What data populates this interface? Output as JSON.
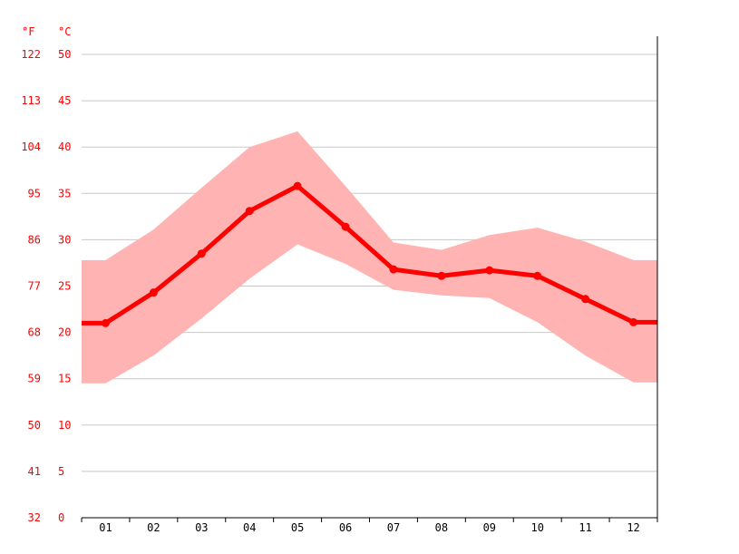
{
  "chart_data": {
    "type": "line",
    "units": {
      "fahrenheit": "°F",
      "celsius": "°C"
    },
    "categories": [
      "01",
      "02",
      "03",
      "04",
      "05",
      "06",
      "07",
      "08",
      "09",
      "10",
      "11",
      "12"
    ],
    "y_ticks_celsius": [
      "0",
      "5",
      "10",
      "15",
      "20",
      "25",
      "30",
      "35",
      "40",
      "45",
      "50"
    ],
    "y_ticks_fahrenheit": [
      "32",
      "41",
      "50",
      "59",
      "68",
      "77",
      "86",
      "95",
      "104",
      "113",
      "122"
    ],
    "ylim": [
      0,
      50
    ],
    "grid": true,
    "series": [
      {
        "role": "mean",
        "color": "#ff0000",
        "values": [
          21.0,
          24.3,
          28.5,
          33.1,
          35.8,
          31.4,
          26.8,
          26.1,
          26.7,
          26.1,
          23.6,
          21.1
        ]
      },
      {
        "role": "max",
        "color": "#ffb3b3",
        "values": [
          27.8,
          31.1,
          35.6,
          40.0,
          41.7,
          35.8,
          29.7,
          28.9,
          30.5,
          31.3,
          29.8,
          27.8
        ]
      },
      {
        "role": "min",
        "color": "#ffb3b3",
        "values": [
          14.5,
          17.5,
          21.5,
          25.8,
          29.5,
          27.4,
          24.6,
          24.0,
          23.7,
          21.1,
          17.5,
          14.6
        ]
      }
    ]
  }
}
